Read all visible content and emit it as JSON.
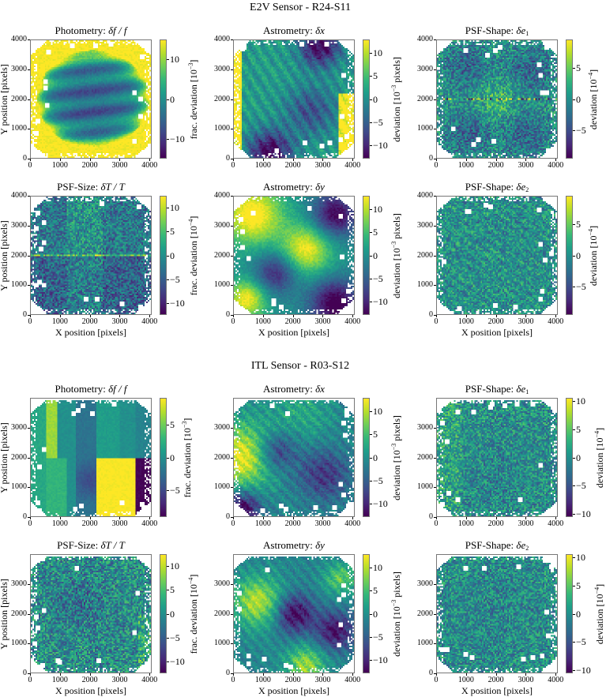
{
  "sections": [
    {
      "title": "E2V Sensor - R24-S11"
    },
    {
      "title": "ITL Sensor - R03-S12"
    }
  ],
  "axis_labels": {
    "x": "X position [pixels]",
    "y": "Y position [pixels]"
  },
  "chart_data": {
    "type": "heatmap",
    "colormap": "viridis",
    "x_ticks": [
      "0",
      "1000",
      "2000",
      "3000",
      "4000"
    ],
    "xlim": [
      0,
      4072
    ],
    "panels": [
      {
        "section": 0,
        "title": "Photometry: ",
        "math": "δf / f",
        "sub": "",
        "cb_label": "frac. deviation [10",
        "cb_exp": "−3",
        "cb_end": "]",
        "clim": [
          -15,
          15
        ],
        "cb_ticks": [
          10,
          0,
          -10
        ],
        "y_ticks": [
          0,
          1000,
          2000,
          3000,
          4000
        ],
        "ylim": [
          0,
          4000
        ]
      },
      {
        "section": 0,
        "title": "Astrometry: ",
        "math": "δx",
        "sub": "",
        "cb_label": "deviation [10",
        "cb_exp": "−3",
        "cb_end": " pixels]",
        "clim": [
          -13,
          13
        ],
        "cb_ticks": [
          10,
          5,
          0,
          -5,
          -10
        ],
        "y_ticks": [
          0,
          1000,
          2000,
          3000,
          4000
        ],
        "ylim": [
          0,
          4000
        ]
      },
      {
        "section": 0,
        "title": "PSF-Shape: ",
        "math": "δe",
        "sub": "1",
        "cb_label": "deviation [10",
        "cb_exp": "−4",
        "cb_end": "]",
        "clim": [
          -9.5,
          9.5
        ],
        "cb_ticks": [
          5,
          0,
          -5
        ],
        "y_ticks": [
          0,
          1000,
          2000,
          3000,
          4000
        ],
        "ylim": [
          0,
          4000
        ]
      },
      {
        "section": 0,
        "title": "PSF-Size: ",
        "math": "δT / T",
        "sub": "",
        "cb_label": "frac. deviation [10",
        "cb_exp": "−4",
        "cb_end": "]",
        "clim": [
          -12.5,
          12.5
        ],
        "cb_ticks": [
          10,
          5,
          0,
          -5,
          -10
        ],
        "y_ticks": [
          0,
          1000,
          2000,
          3000,
          4000
        ],
        "ylim": [
          0,
          4000
        ]
      },
      {
        "section": 0,
        "title": "Astrometry: ",
        "math": "δy",
        "sub": "",
        "cb_label": "deviation [10",
        "cb_exp": "−3",
        "cb_end": " pixels]",
        "clim": [
          -13,
          13
        ],
        "cb_ticks": [
          10,
          5,
          0,
          -5,
          -10
        ],
        "y_ticks": [
          0,
          1000,
          2000,
          3000,
          4000
        ],
        "ylim": [
          0,
          4000
        ]
      },
      {
        "section": 0,
        "title": "PSF-Shape: ",
        "math": "δe",
        "sub": "2",
        "cb_label": "deviation [10",
        "cb_exp": "−4",
        "cb_end": "]",
        "clim": [
          -9.5,
          9.5
        ],
        "cb_ticks": [
          5,
          0,
          -5
        ],
        "y_ticks": [
          0,
          1000,
          2000,
          3000,
          4000
        ],
        "ylim": [
          0,
          4000
        ]
      },
      {
        "section": 1,
        "title": "Photometry: ",
        "math": "δf / f",
        "sub": "",
        "cb_label": "frac. deviation [10",
        "cb_exp": "−3",
        "cb_end": "]",
        "clim": [
          -9,
          9
        ],
        "cb_ticks": [
          5,
          0,
          -5
        ],
        "y_ticks": [
          0,
          1000,
          2000,
          3000
        ],
        "ylim": [
          0,
          4000
        ]
      },
      {
        "section": 1,
        "title": "Astrometry: ",
        "math": "δx",
        "sub": "",
        "cb_label": "deviation [10",
        "cb_exp": "−3",
        "cb_end": " pixels]",
        "clim": [
          -13,
          13
        ],
        "cb_ticks": [
          10,
          5,
          0,
          -5,
          -10
        ],
        "y_ticks": [
          0,
          1000,
          2000,
          3000
        ],
        "ylim": [
          0,
          4000
        ]
      },
      {
        "section": 1,
        "title": "PSF-Shape: ",
        "math": "δe",
        "sub": "1",
        "cb_label": "deviation [10",
        "cb_exp": "−4",
        "cb_end": "]",
        "clim": [
          -10.5,
          10.5
        ],
        "cb_ticks": [
          10,
          5,
          0,
          -5,
          -10
        ],
        "y_ticks": [
          0,
          1000,
          2000,
          3000
        ],
        "ylim": [
          0,
          4000
        ]
      },
      {
        "section": 1,
        "title": "PSF-Size: ",
        "math": "δT / T",
        "sub": "",
        "cb_label": "frac. deviation [10",
        "cb_exp": "−4",
        "cb_end": "]",
        "clim": [
          -12.5,
          12.5
        ],
        "cb_ticks": [
          10,
          5,
          0,
          -5,
          -10
        ],
        "y_ticks": [
          0,
          1000,
          2000,
          3000
        ],
        "ylim": [
          0,
          4000
        ]
      },
      {
        "section": 1,
        "title": "Astrometry: ",
        "math": "δy",
        "sub": "",
        "cb_label": "deviation [10",
        "cb_exp": "−3",
        "cb_end": " pixels]",
        "clim": [
          -13,
          13
        ],
        "cb_ticks": [
          10,
          5,
          0,
          -5,
          -10
        ],
        "y_ticks": [
          0,
          1000,
          2000,
          3000
        ],
        "ylim": [
          0,
          4000
        ]
      },
      {
        "section": 1,
        "title": "PSF-Shape: ",
        "math": "δe",
        "sub": "2",
        "cb_label": "deviation [10",
        "cb_exp": "−4",
        "cb_end": "]",
        "clim": [
          -10.5,
          10.5
        ],
        "cb_ticks": [
          10,
          5,
          0,
          -5,
          -10
        ],
        "y_ticks": [
          0,
          1000,
          2000,
          3000
        ],
        "ylim": [
          0,
          4000
        ]
      }
    ]
  }
}
